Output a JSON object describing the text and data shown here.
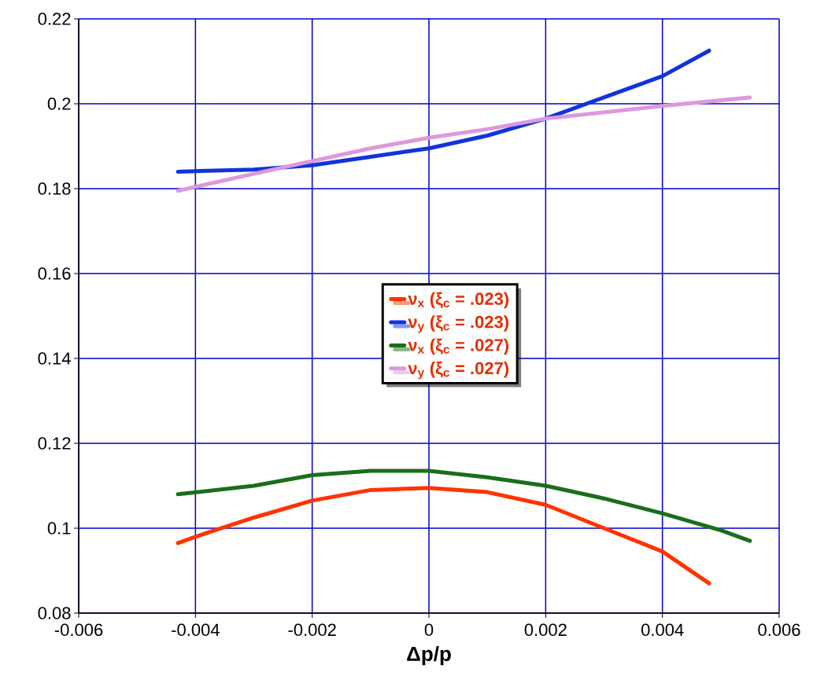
{
  "chart_data": {
    "type": "line",
    "xlabel": "**Δp/p**",
    "xlim": [
      -0.006,
      0.006
    ],
    "xticks": [
      -0.006,
      -0.004,
      -0.002,
      0,
      0.002,
      0.004,
      0.006
    ],
    "ylim": [
      0.08,
      0.22
    ],
    "yticks": [
      0.08,
      0.1,
      0.12,
      0.14,
      0.16,
      0.18,
      0.2,
      0.22
    ],
    "grid": true,
    "legend": "center",
    "line_style": "solid",
    "marker": "none",
    "series": [
      {
        "name": "ν$_{x}$ (ξ$_{c}$ = .023)",
        "color": "#ff3300",
        "x": [
          -0.0043,
          -0.004,
          -0.003,
          -0.002,
          -0.001,
          0,
          0.001,
          0.002,
          0.003,
          0.004,
          0.0048
        ],
        "values": [
          0.0965,
          0.098,
          0.1025,
          0.1065,
          0.109,
          0.1095,
          0.1085,
          0.1055,
          0.1,
          0.0945,
          0.087
        ]
      },
      {
        "name": "ν$_{y}$ (ξ$_{c}$ = .023)",
        "color": "#1133dd",
        "x": [
          -0.0043,
          -0.003,
          -0.002,
          -0.001,
          0,
          0.001,
          0.002,
          0.003,
          0.004,
          0.0048
        ],
        "values": [
          0.184,
          0.1845,
          0.1855,
          0.1875,
          0.1895,
          0.1925,
          0.1965,
          0.2015,
          0.2065,
          0.2125
        ]
      },
      {
        "name": "ν$_{x}$ (ξ$_{c}$ = .027)",
        "color": "#1a6e1a",
        "x": [
          -0.0043,
          -0.003,
          -0.002,
          -0.001,
          0,
          0.001,
          0.002,
          0.003,
          0.004,
          0.005,
          0.0055
        ],
        "values": [
          0.108,
          0.11,
          0.1125,
          0.1135,
          0.1135,
          0.112,
          0.11,
          0.107,
          0.1035,
          0.0995,
          0.097
        ]
      },
      {
        "name": "ν$_{y}$ (ξ$_{c}$ = .027)",
        "color": "#dd99dd",
        "x": [
          -0.0043,
          -0.003,
          -0.002,
          -0.001,
          0,
          0.001,
          0.002,
          0.003,
          0.004,
          0.0055
        ],
        "values": [
          0.1795,
          0.1835,
          0.1865,
          0.1895,
          0.192,
          0.194,
          0.1965,
          0.198,
          0.1995,
          0.2015
        ]
      }
    ]
  }
}
